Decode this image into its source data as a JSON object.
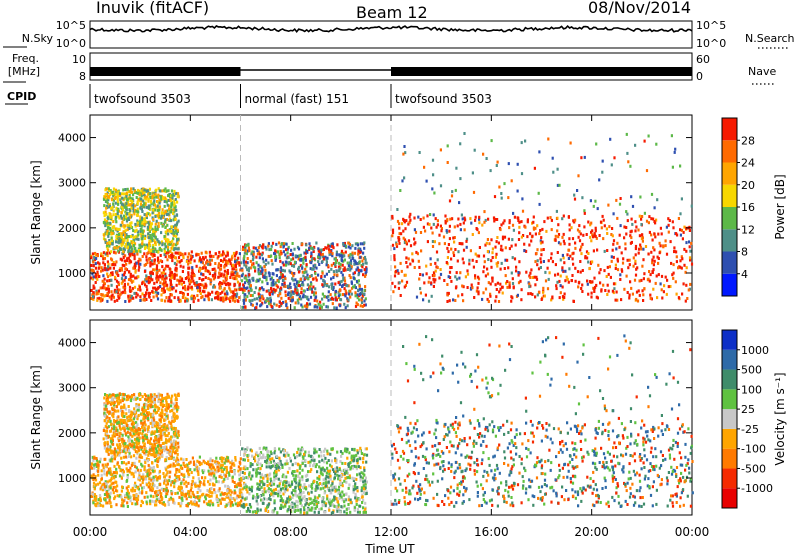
{
  "header": {
    "station": "Inuvik (fitACF)",
    "beam": "Beam 12",
    "date": "08/Nov/2014"
  },
  "strip_labels": {
    "nsky": "N.Sky",
    "nsearch": "N.Search",
    "freq_line1": "Freq.",
    "freq_line2": "[MHz]",
    "nave": "Nave",
    "cpid": "CPID",
    "noise_tick_hi": "10^5",
    "noise_tick_lo": "10^0",
    "freq_tick_hi": "10",
    "freq_tick_lo": "8",
    "nave_tick_hi": "60",
    "nave_tick_lo": "0"
  },
  "cpid_segments": [
    {
      "label": "twofsound 3503",
      "start_hour": 0,
      "end_hour": 6
    },
    {
      "label": "normal (fast) 151",
      "start_hour": 6,
      "end_hour": 12
    },
    {
      "label": "twofsound 3503",
      "start_hour": 12,
      "end_hour": 24
    }
  ],
  "time_axis": {
    "label": "Time UT",
    "ticks": [
      "00:00",
      "04:00",
      "08:00",
      "12:00",
      "16:00",
      "20:00",
      "00:00"
    ]
  },
  "chart_data": [
    {
      "type": "heatmap",
      "title": "",
      "xlabel": "Time UT",
      "ylabel": "Slant Range [km]",
      "xlim_hours": [
        0,
        24
      ],
      "ylim": [
        180,
        4500
      ],
      "yticks": [
        1000,
        2000,
        3000,
        4000
      ],
      "colorbar": {
        "label": "Power [dB]",
        "ticks": [
          "4",
          "8",
          "12",
          "16",
          "20",
          "24",
          "28"
        ],
        "colors": [
          "#0018ff",
          "#2e4fb0",
          "#4e8f88",
          "#5cb848",
          "#f7d700",
          "#ffa500",
          "#ff6a00",
          "#f61a00"
        ]
      },
      "scatter_regions": [
        {
          "t0": 0,
          "t1": 6.0,
          "r0": 400,
          "r1": 1500,
          "value": "high"
        },
        {
          "t0": 0.5,
          "t1": 3.5,
          "r0": 1500,
          "r1": 2900,
          "value": "medium"
        },
        {
          "t0": 6.0,
          "t1": 11.0,
          "r0": 250,
          "r1": 1700,
          "value": "mixed"
        },
        {
          "t0": 12.0,
          "t1": 24.0,
          "r0": 400,
          "r1": 2300,
          "value": "high"
        },
        {
          "t0": 12.2,
          "t1": 24.0,
          "r0": 2300,
          "r1": 4200,
          "value": "sparse"
        }
      ]
    },
    {
      "type": "heatmap",
      "title": "",
      "xlabel": "Time UT",
      "ylabel": "Slant Range [km]",
      "xlim_hours": [
        0,
        24
      ],
      "ylim": [
        180,
        4500
      ],
      "yticks": [
        1000,
        2000,
        3000,
        4000
      ],
      "colorbar": {
        "label": "Velocity [m s⁻¹]",
        "ticks": [
          "1000",
          "500",
          "100",
          "25",
          "-25",
          "-100",
          "-500",
          "-1000"
        ],
        "colors": [
          "#0d2fc7",
          "#2e6aa8",
          "#3f8c6a",
          "#5fc240",
          "#c8c8c8",
          "#ffa500",
          "#ff7a00",
          "#f52a00",
          "#e80000"
        ]
      },
      "scatter_regions": [
        {
          "t0": 0,
          "t1": 6.0,
          "r0": 400,
          "r1": 1500,
          "value": "negative"
        },
        {
          "t0": 0.5,
          "t1": 3.5,
          "r0": 1500,
          "r1": 2900,
          "value": "negative"
        },
        {
          "t0": 6.0,
          "t1": 11.0,
          "r0": 250,
          "r1": 1700,
          "value": "positive"
        },
        {
          "t0": 12.0,
          "t1": 24.0,
          "r0": 400,
          "r1": 2300,
          "value": "mixed"
        },
        {
          "t0": 12.2,
          "t1": 24.0,
          "r0": 2300,
          "r1": 4200,
          "value": "sparse"
        }
      ]
    }
  ]
}
